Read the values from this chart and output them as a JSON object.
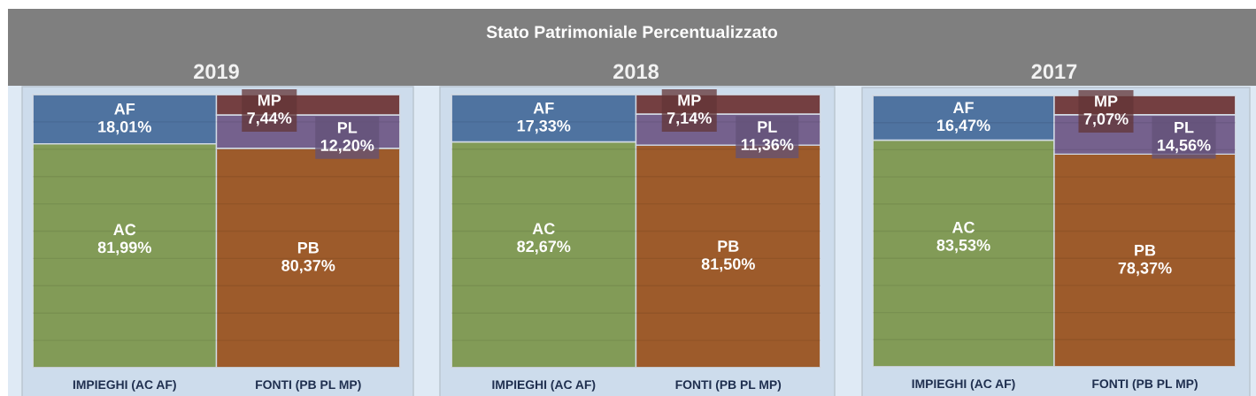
{
  "chart_data": [
    {
      "type": "other",
      "title": "Stato Patrimoniale Percentualizzato"
    },
    {
      "type": "bar",
      "title": "2019",
      "stacked": true,
      "categories": [
        "IMPIEGHI (AC AF)",
        "FONTI (PB PL MP)"
      ],
      "series": [
        {
          "name": "AC",
          "color": "#829b57",
          "values": [
            81.99,
            null
          ],
          "value_labels": [
            "81,99%",
            null
          ]
        },
        {
          "name": "AF",
          "color": "#4f73a0",
          "values": [
            18.01,
            null
          ],
          "value_labels": [
            "18,01%",
            null
          ]
        },
        {
          "name": "PB",
          "color": "#9d5b2b",
          "values": [
            null,
            80.37
          ],
          "value_labels": [
            null,
            "80,37%"
          ]
        },
        {
          "name": "PL",
          "color": "#75618d",
          "values": [
            null,
            12.2
          ],
          "value_labels": [
            null,
            "12,20%"
          ]
        },
        {
          "name": "MP",
          "color": "#743f41",
          "values": [
            null,
            7.44
          ],
          "value_labels": [
            null,
            "7,44%"
          ]
        }
      ],
      "yticks": [
        {
          "value": 0,
          "label": null
        },
        {
          "value": 10,
          "label": null
        },
        {
          "value": 20,
          "label": null
        },
        {
          "value": 30,
          "label": null
        },
        {
          "value": 40,
          "label": null
        },
        {
          "value": 50,
          "label": null
        },
        {
          "value": 60,
          "label": null
        },
        {
          "value": 70,
          "label": null
        },
        {
          "value": 80,
          "label": null
        },
        {
          "value": 90,
          "label": null
        },
        {
          "value": 100,
          "label": null
        }
      ],
      "grid": "y",
      "tick_labels": "x"
    },
    {
      "type": "bar",
      "title": "2018",
      "stacked": true,
      "categories": [
        "IMPIEGHI (AC AF)",
        "FONTI (PB PL MP)"
      ],
      "series": [
        {
          "name": "AC",
          "color": "#829b57",
          "values": [
            82.67,
            null
          ],
          "value_labels": [
            "82,67%",
            null
          ]
        },
        {
          "name": "AF",
          "color": "#4f73a0",
          "values": [
            17.33,
            null
          ],
          "value_labels": [
            "17,33%",
            null
          ]
        },
        {
          "name": "PB",
          "color": "#9d5b2b",
          "values": [
            null,
            81.5
          ],
          "value_labels": [
            null,
            "81,50%"
          ]
        },
        {
          "name": "PL",
          "color": "#75618d",
          "values": [
            null,
            11.36
          ],
          "value_labels": [
            null,
            "11,36%"
          ]
        },
        {
          "name": "MP",
          "color": "#743f41",
          "values": [
            null,
            7.14
          ],
          "value_labels": [
            null,
            "7,14%"
          ]
        }
      ],
      "yticks": [
        {
          "value": 0,
          "label": null
        },
        {
          "value": 10,
          "label": null
        },
        {
          "value": 20,
          "label": null
        },
        {
          "value": 30,
          "label": null
        },
        {
          "value": 40,
          "label": null
        },
        {
          "value": 50,
          "label": null
        },
        {
          "value": 60,
          "label": null
        },
        {
          "value": 70,
          "label": null
        },
        {
          "value": 80,
          "label": null
        },
        {
          "value": 90,
          "label": null
        },
        {
          "value": 100,
          "label": null
        }
      ],
      "grid": "y",
      "tick_labels": "x"
    },
    {
      "type": "bar",
      "title": "2017",
      "stacked": true,
      "categories": [
        "IMPIEGHI (AC AF)",
        "FONTI (PB PL MP)"
      ],
      "series": [
        {
          "name": "AC",
          "color": "#829b57",
          "values": [
            83.53,
            null
          ],
          "value_labels": [
            "83,53%",
            null
          ]
        },
        {
          "name": "AF",
          "color": "#4f73a0",
          "values": [
            16.47,
            null
          ],
          "value_labels": [
            "16,47%",
            null
          ]
        },
        {
          "name": "PB",
          "color": "#9d5b2b",
          "values": [
            null,
            78.37
          ],
          "value_labels": [
            null,
            "78,37%"
          ]
        },
        {
          "name": "PL",
          "color": "#75618d",
          "values": [
            null,
            14.56
          ],
          "value_labels": [
            null,
            "14,56%"
          ]
        },
        {
          "name": "MP",
          "color": "#743f41",
          "values": [
            null,
            7.07
          ],
          "value_labels": [
            null,
            "7,07%"
          ]
        }
      ],
      "yticks": [
        {
          "value": 0,
          "label": null
        },
        {
          "value": 10,
          "label": null
        },
        {
          "value": 20,
          "label": null
        },
        {
          "value": 30,
          "label": null
        },
        {
          "value": 40,
          "label": null
        },
        {
          "value": 50,
          "label": null
        },
        {
          "value": 60,
          "label": null
        },
        {
          "value": 70,
          "label": null
        },
        {
          "value": 80,
          "label": null
        },
        {
          "value": 90,
          "label": null
        },
        {
          "value": 100,
          "label": null
        }
      ],
      "grid": "y",
      "tick_labels": "x"
    }
  ]
}
